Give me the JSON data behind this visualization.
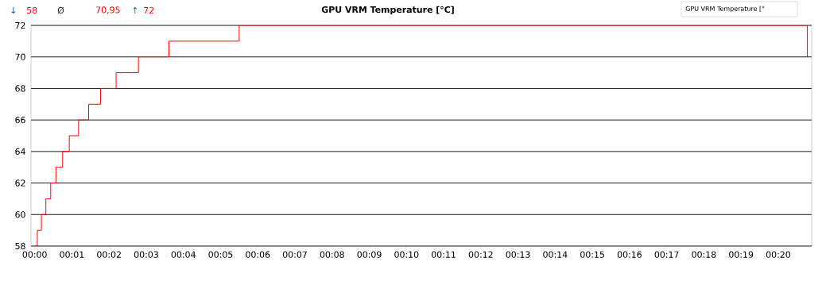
{
  "chart_data": {
    "type": "step",
    "title": "GPU VRM Temperature [°C]",
    "annotations": [
      "↓",
      "58",
      "Ø",
      "70,95",
      "↑",
      "72",
      "GPU VRM Temperature [°"
    ],
    "x": [
      0,
      0.07,
      0.18,
      0.3,
      0.43,
      0.57,
      0.75,
      0.93,
      1.18,
      1.45,
      1.77,
      2.19,
      2.79,
      3.61,
      5.5,
      20.78
    ],
    "series": [
      {
        "color": "#ff0000",
        "values": [
          58,
          59,
          60,
          61,
          62,
          63,
          64,
          65,
          66,
          67,
          68,
          69,
          70,
          71,
          72,
          70
        ]
      }
    ],
    "xlim": [
      -0.1,
      20.9
    ],
    "xticks": [
      {
        "value": 0,
        "label": "00:00"
      },
      {
        "value": 1,
        "label": "00:01"
      },
      {
        "value": 2,
        "label": "00:02"
      },
      {
        "value": 3,
        "label": "00:03"
      },
      {
        "value": 4,
        "label": "00:04"
      },
      {
        "value": 5,
        "label": "00:05"
      },
      {
        "value": 6,
        "label": "00:06"
      },
      {
        "value": 7,
        "label": "00:07"
      },
      {
        "value": 8,
        "label": "00:08"
      },
      {
        "value": 9,
        "label": "00:09"
      },
      {
        "value": 10,
        "label": "00:10"
      },
      {
        "value": 11,
        "label": "00:11"
      },
      {
        "value": 12,
        "label": "00:12"
      },
      {
        "value": 13,
        "label": "00:13"
      },
      {
        "value": 14,
        "label": "00:14"
      },
      {
        "value": 15,
        "label": "00:15"
      },
      {
        "value": 16,
        "label": "00:16"
      },
      {
        "value": 17,
        "label": "00:17"
      },
      {
        "value": 18,
        "label": "00:18"
      },
      {
        "value": 19,
        "label": "00:19"
      },
      {
        "value": 20,
        "label": "00:20"
      }
    ],
    "ylim": [
      58,
      72
    ],
    "yticks": [
      58,
      60,
      62,
      64,
      66,
      68,
      70,
      72
    ],
    "grid": "y",
    "marker": "none",
    "line_style": "solid"
  }
}
